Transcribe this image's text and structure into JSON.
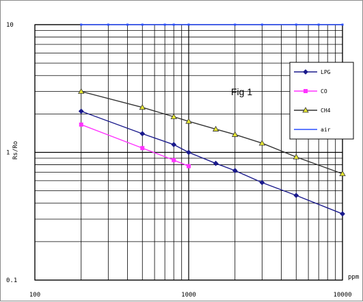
{
  "chart_data": {
    "type": "line",
    "title": "",
    "annotation": "Fig 1",
    "xlabel": "ppm",
    "ylabel": "Rs/Ro",
    "x_scale": "log",
    "y_scale": "log",
    "xlim": [
      100,
      10000
    ],
    "ylim": [
      0.1,
      10
    ],
    "grid": true,
    "legend_position": "top-right",
    "x_tick_labels": [
      "100",
      "1000",
      "10000"
    ],
    "y_tick_labels": [
      "10",
      "1",
      "0.1"
    ],
    "series": [
      {
        "name": "LPG",
        "color": "#1a1a8c",
        "marker": "diamond",
        "x": [
          200,
          500,
          800,
          1000,
          1500,
          2000,
          3000,
          5000,
          10000
        ],
        "y": [
          2.1,
          1.4,
          1.15,
          1.0,
          0.82,
          0.72,
          0.58,
          0.46,
          0.33
        ]
      },
      {
        "name": "CO",
        "color": "#ff33ff",
        "marker": "square",
        "x": [
          200,
          500,
          800,
          1000
        ],
        "y": [
          1.65,
          1.08,
          0.87,
          0.78
        ]
      },
      {
        "name": "CH4",
        "color": "#333333",
        "marker": "triangle",
        "marker_fill": "#e6e633",
        "x": [
          200,
          500,
          800,
          1000,
          1500,
          2000,
          3000,
          5000,
          10000
        ],
        "y": [
          3.0,
          2.25,
          1.9,
          1.75,
          1.52,
          1.38,
          1.18,
          0.92,
          0.68
        ]
      },
      {
        "name": "air",
        "color": "#2a4fff",
        "marker": "none",
        "x": [
          200,
          10000
        ],
        "y": [
          10,
          10
        ]
      }
    ]
  }
}
